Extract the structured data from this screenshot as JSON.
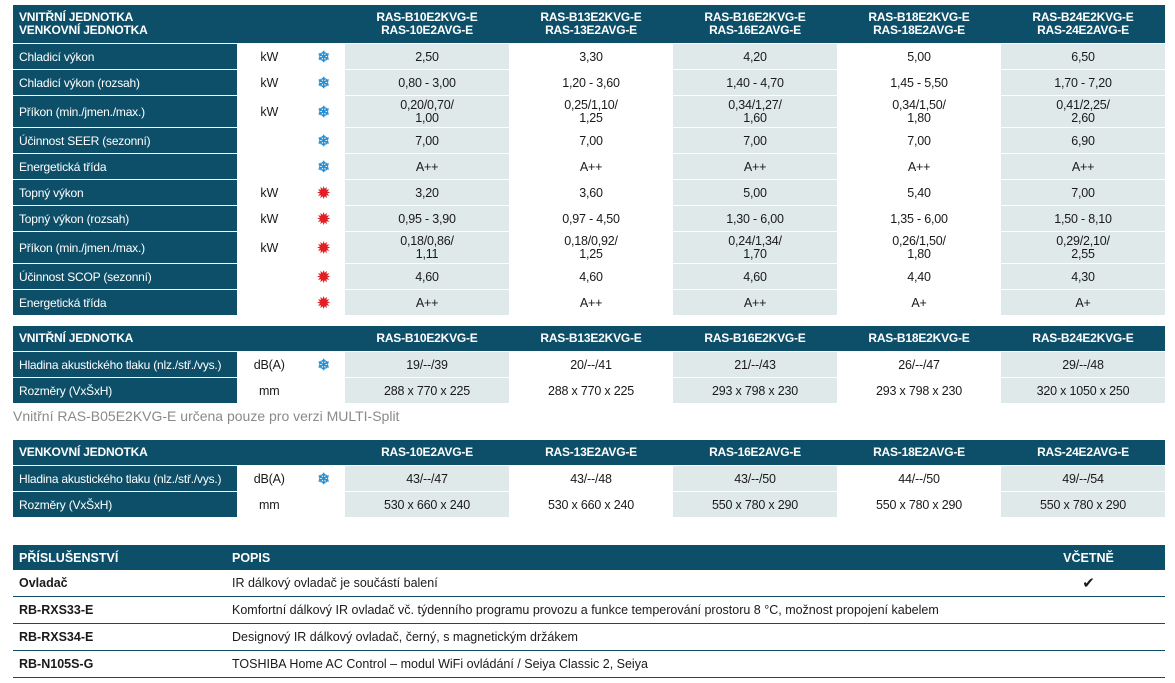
{
  "spec": {
    "header_line1": "VNITŘNÍ JEDNOTKA",
    "header_line2": "VENKOVNÍ JEDNOTKA",
    "models": [
      {
        "indoor": "RAS-B10E2KVG-E",
        "outdoor": "RAS-10E2AVG-E"
      },
      {
        "indoor": "RAS-B13E2KVG-E",
        "outdoor": "RAS-13E2AVG-E"
      },
      {
        "indoor": "RAS-B16E2KVG-E",
        "outdoor": "RAS-16E2AVG-E"
      },
      {
        "indoor": "RAS-B18E2KVG-E",
        "outdoor": "RAS-18E2AVG-E"
      },
      {
        "indoor": "RAS-B24E2KVG-E",
        "outdoor": "RAS-24E2AVG-E"
      }
    ],
    "rows": [
      {
        "label": "Chladicí výkon",
        "unit": "kW",
        "icon": "snowflake-icon",
        "values": [
          [
            "2,50"
          ],
          [
            "3,30"
          ],
          [
            "4,20"
          ],
          [
            "5,00"
          ],
          [
            "6,50"
          ]
        ]
      },
      {
        "label": "Chladicí výkon (rozsah)",
        "unit": "kW",
        "icon": "snowflake-icon",
        "values": [
          [
            "0,80 - 3,00"
          ],
          [
            "1,20 - 3,60"
          ],
          [
            "1,40 - 4,70"
          ],
          [
            "1,45 - 5,50"
          ],
          [
            "1,70 - 7,20"
          ]
        ]
      },
      {
        "label": "Příkon (min./jmen./max.)",
        "unit": "kW",
        "icon": "snowflake-icon",
        "values": [
          [
            "0,20/0,70/",
            "1,00"
          ],
          [
            "0,25/1,10/",
            "1,25"
          ],
          [
            "0,34/1,27/",
            "1,60"
          ],
          [
            "0,34/1,50/",
            "1,80"
          ],
          [
            "0,41/2,25/",
            "2,60"
          ]
        ]
      },
      {
        "label": "Účinnost SEER (sezonní)",
        "unit": "",
        "icon": "snowflake-icon",
        "values": [
          [
            "7,00"
          ],
          [
            "7,00"
          ],
          [
            "7,00"
          ],
          [
            "7,00"
          ],
          [
            "6,90"
          ]
        ]
      },
      {
        "label": "Energetická třída",
        "unit": "",
        "icon": "snowflake-icon",
        "values": [
          [
            "A++"
          ],
          [
            "A++"
          ],
          [
            "A++"
          ],
          [
            "A++"
          ],
          [
            "A++"
          ]
        ]
      },
      {
        "label": "Topný výkon",
        "unit": "kW",
        "icon": "sun-icon",
        "values": [
          [
            "3,20"
          ],
          [
            "3,60"
          ],
          [
            "5,00"
          ],
          [
            "5,40"
          ],
          [
            "7,00"
          ]
        ]
      },
      {
        "label": "Topný výkon (rozsah)",
        "unit": "kW",
        "icon": "sun-icon",
        "values": [
          [
            "0,95 - 3,90"
          ],
          [
            "0,97 - 4,50"
          ],
          [
            "1,30 - 6,00"
          ],
          [
            "1,35 - 6,00"
          ],
          [
            "1,50 - 8,10"
          ]
        ]
      },
      {
        "label": "Příkon (min./jmen./max.)",
        "unit": "kW",
        "icon": "sun-icon",
        "values": [
          [
            "0,18/0,86/",
            "1,11"
          ],
          [
            "0,18/0,92/",
            "1,25"
          ],
          [
            "0,24/1,34/",
            "1,70"
          ],
          [
            "0,26/1,50/",
            "1,80"
          ],
          [
            "0,29/2,10/",
            "2,55"
          ]
        ]
      },
      {
        "label": "Účinnost SCOP (sezonní)",
        "unit": "",
        "icon": "sun-icon",
        "values": [
          [
            "4,60"
          ],
          [
            "4,60"
          ],
          [
            "4,60"
          ],
          [
            "4,40"
          ],
          [
            "4,30"
          ]
        ]
      },
      {
        "label": "Energetická třída",
        "unit": "",
        "icon": "sun-icon",
        "values": [
          [
            "A++"
          ],
          [
            "A++"
          ],
          [
            "A++"
          ],
          [
            "A+"
          ],
          [
            "A+"
          ]
        ]
      }
    ]
  },
  "indoor": {
    "header": "VNITŘNÍ JEDNOTKA",
    "models": [
      "RAS-B10E2KVG-E",
      "RAS-B13E2KVG-E",
      "RAS-B16E2KVG-E",
      "RAS-B18E2KVG-E",
      "RAS-B24E2KVG-E"
    ],
    "rows": [
      {
        "label": "Hladina akustického tlaku (nlz./stř./vys.)",
        "unit": "dB(A)",
        "icon": "snowflake-icon",
        "values": [
          "19/--/39",
          "20/--/41",
          "21/--/43",
          "26/--/47",
          "29/--/48"
        ]
      },
      {
        "label": "Rozměry (VxŠxH)",
        "unit": "mm",
        "icon": "",
        "values": [
          "288 x 770 x 225",
          "288 x 770 x 225",
          "293 x 798 x 230",
          "293 x 798 x 230",
          "320 x 1050 x 250"
        ]
      }
    ]
  },
  "note": "Vnitřní RAS-B05E2KVG-E určena pouze pro verzi MULTI-Split",
  "outdoor": {
    "header": "VENKOVNÍ JEDNOTKA",
    "models": [
      "RAS-10E2AVG-E",
      "RAS-13E2AVG-E",
      "RAS-16E2AVG-E",
      "RAS-18E2AVG-E",
      "RAS-24E2AVG-E"
    ],
    "rows": [
      {
        "label": "Hladina akustického tlaku (nlz./stř./vys.)",
        "unit": "dB(A)",
        "icon": "snowflake-icon",
        "values": [
          "43/--/47",
          "43/--/48",
          "43/--/50",
          "44/--/50",
          "49/--/54"
        ]
      },
      {
        "label": "Rozměry (VxŠxH)",
        "unit": "mm",
        "icon": "",
        "values": [
          "530 x 660 x 240",
          "530 x 660 x 240",
          "550 x 780 x 290",
          "550 x 780 x 290",
          "550 x 780 x 290"
        ]
      }
    ]
  },
  "accessories": {
    "col_accessory": "PŘÍSLUŠENSTVÍ",
    "col_description": "POPIS",
    "col_included": "VČETNĚ",
    "items": [
      {
        "name": "Ovladač",
        "description": "IR dálkový ovladač je součástí balení",
        "included": "✔"
      },
      {
        "name": "RB-RXS33-E",
        "description": "Komfortní dálkový IR ovladač vč. týdenního programu provozu a funkce temperování prostoru 8 °C, možnost propojení kabelem",
        "included": ""
      },
      {
        "name": "RB-RXS34-E",
        "description": "Designový IR dálkový ovladač, černý, s magnetickým držákem",
        "included": ""
      },
      {
        "name": "RB-N105S-G",
        "description": "TOSHIBA Home AC Control – modul WiFi ovládání / Seiya Classic 2, Seiya",
        "included": ""
      }
    ]
  },
  "icons": {
    "snowflake-icon": "❄",
    "sun-icon": "✹"
  },
  "colors": {
    "header_bg": "#0d4f68",
    "shade": "#dfe9ea",
    "snow": "#2a8fd1",
    "sun": "#e31e24"
  }
}
